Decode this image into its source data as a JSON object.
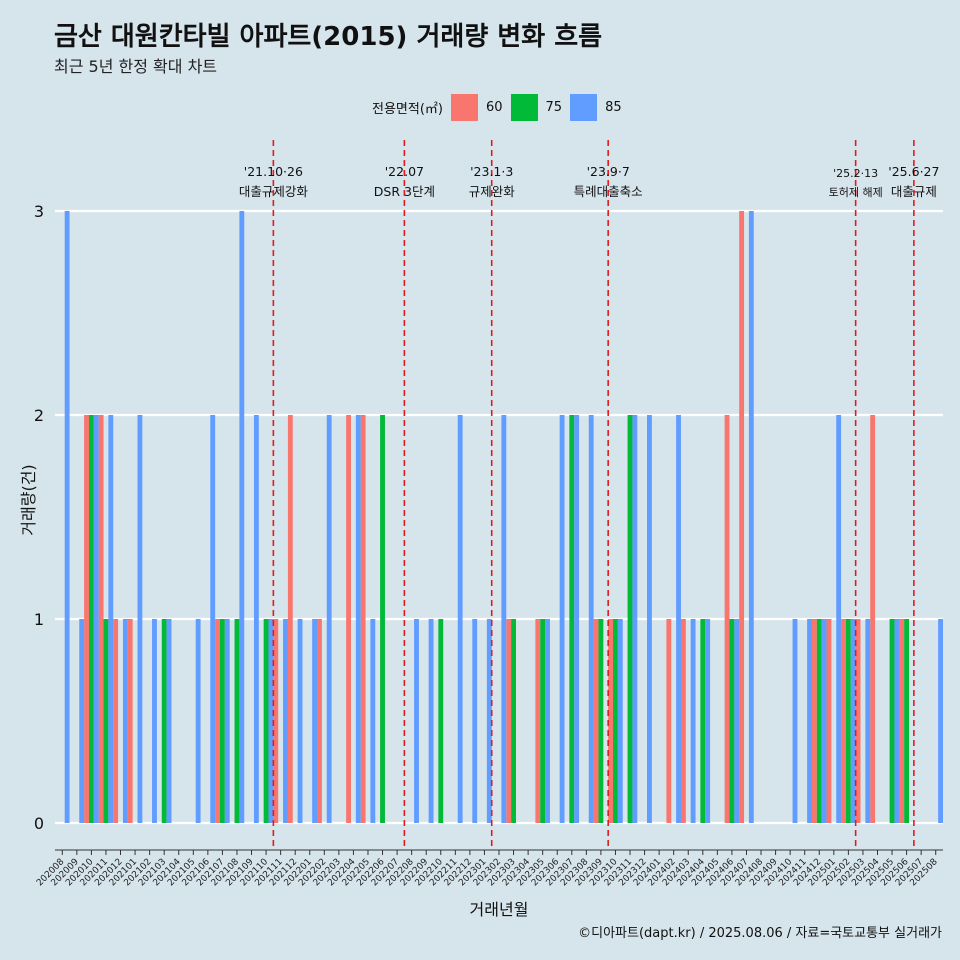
{
  "title": "금산 대원칸타빌 아파트(2015) 거래량 변화 흐름",
  "subtitle": "최근 5년 한정 확대 차트",
  "caption": "©디아파트(dapt.kr) / 2025.08.06 / 자료=국토교통부 실거래가",
  "legend": {
    "title": "전용면적(㎡)",
    "items": [
      {
        "label": "60",
        "color": "#f8766d"
      },
      {
        "label": "75",
        "color": "#00ba38"
      },
      {
        "label": "85",
        "color": "#619cff"
      }
    ]
  },
  "chart_data": {
    "type": "bar",
    "xlabel": "거래년월",
    "ylabel": "거래량(건)",
    "ylim": [
      0,
      3
    ],
    "yticks": [
      0,
      1,
      2,
      3
    ],
    "categories": [
      "202008",
      "202009",
      "202010",
      "202011",
      "202012",
      "202101",
      "202102",
      "202103",
      "202104",
      "202105",
      "202106",
      "202107",
      "202108",
      "202109",
      "202110",
      "202111",
      "202112",
      "202201",
      "202202",
      "202203",
      "202204",
      "202205",
      "202206",
      "202207",
      "202208",
      "202209",
      "202210",
      "202211",
      "202212",
      "202301",
      "202302",
      "202303",
      "202304",
      "202305",
      "202306",
      "202307",
      "202308",
      "202309",
      "202310",
      "202311",
      "202312",
      "202401",
      "202402",
      "202403",
      "202404",
      "202405",
      "202406",
      "202407",
      "202408",
      "202409",
      "202410",
      "202411",
      "202412",
      "202501",
      "202502",
      "202503",
      "202504",
      "202505",
      "202506",
      "202507",
      "202508"
    ],
    "series": [
      {
        "name": "60",
        "color": "#f8766d",
        "values": [
          0,
          0,
          2,
          2,
          1,
          1,
          0,
          0,
          0,
          0,
          0,
          1,
          0,
          0,
          0,
          1,
          2,
          0,
          1,
          0,
          2,
          2,
          0,
          0,
          0,
          0,
          0,
          0,
          0,
          0,
          0,
          1,
          0,
          1,
          0,
          0,
          0,
          1,
          1,
          0,
          0,
          0,
          1,
          1,
          0,
          0,
          2,
          3,
          0,
          0,
          0,
          0,
          1,
          1,
          1,
          1,
          2,
          0,
          1,
          0,
          0
        ]
      },
      {
        "name": "75",
        "color": "#00ba38",
        "values": [
          0,
          0,
          2,
          1,
          0,
          0,
          0,
          1,
          0,
          0,
          0,
          1,
          1,
          0,
          1,
          0,
          0,
          0,
          0,
          0,
          0,
          0,
          2,
          0,
          0,
          0,
          1,
          0,
          0,
          0,
          0,
          1,
          0,
          1,
          0,
          2,
          0,
          1,
          1,
          2,
          0,
          0,
          0,
          0,
          1,
          0,
          1,
          0,
          0,
          0,
          0,
          0,
          1,
          0,
          1,
          0,
          0,
          1,
          1,
          0,
          0
        ]
      },
      {
        "name": "85",
        "color": "#619cff",
        "values": [
          3,
          1,
          2,
          2,
          1,
          2,
          1,
          1,
          0,
          1,
          2,
          1,
          3,
          2,
          1,
          1,
          1,
          1,
          2,
          0,
          2,
          1,
          0,
          0,
          1,
          1,
          0,
          2,
          1,
          1,
          2,
          0,
          0,
          1,
          2,
          2,
          2,
          0,
          1,
          2,
          2,
          0,
          2,
          1,
          1,
          0,
          1,
          3,
          0,
          0,
          1,
          1,
          1,
          2,
          1,
          1,
          0,
          1,
          0,
          0,
          1
        ]
      }
    ],
    "events": [
      {
        "label1": "'21.10·26",
        "label2": "대출규제강화",
        "after": "202110",
        "size": "normal"
      },
      {
        "label1": "'22.07",
        "label2": "DSR 3단계",
        "after": "202207",
        "size": "normal"
      },
      {
        "label1": "'23.1·3",
        "label2": "규제완화",
        "after": "202301",
        "size": "normal"
      },
      {
        "label1": "'23.9·7",
        "label2": "특례대출축소",
        "after": "202309",
        "size": "normal"
      },
      {
        "label1": "'25.2·13",
        "label2": "토허제 해제",
        "after": "202502",
        "size": "small"
      },
      {
        "label1": "'25.6·27",
        "label2": "대출규제",
        "after": "202506",
        "size": "normal"
      }
    ]
  }
}
